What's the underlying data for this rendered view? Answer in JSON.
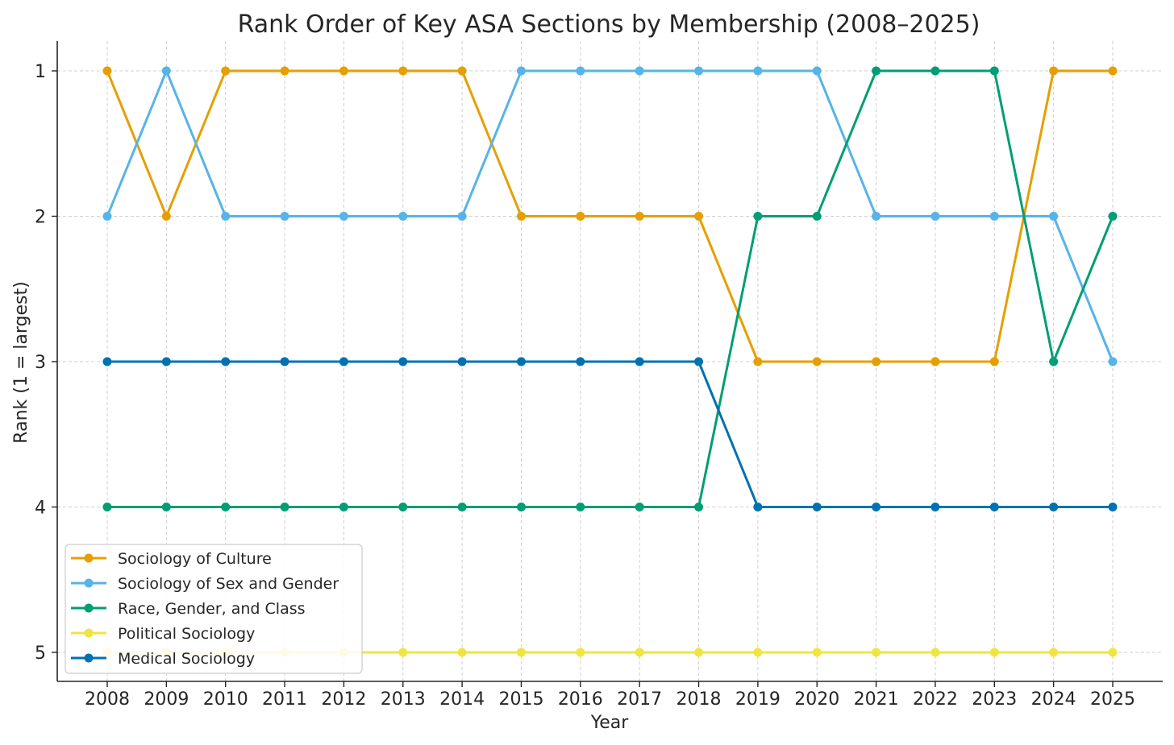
{
  "chart_data": {
    "type": "line",
    "title": "Rank Order of Key ASA Sections by Membership (2008–2025)",
    "xlabel": "Year",
    "ylabel": "Rank (1 = largest)",
    "x": [
      "2008",
      "2009",
      "2010",
      "2011",
      "2012",
      "2013",
      "2014",
      "2015",
      "2016",
      "2017",
      "2018",
      "2019",
      "2020",
      "2021",
      "2022",
      "2023",
      "2024",
      "2025"
    ],
    "yticks": [
      "1",
      "2",
      "3",
      "4",
      "5"
    ],
    "ylim": [
      5.2,
      0.8
    ],
    "y_inverted": true,
    "grid": true,
    "legend_position": "bottom-left",
    "series": [
      {
        "name": "Sociology of Culture",
        "color": "#E69F00",
        "values": [
          1,
          2,
          1,
          1,
          1,
          1,
          1,
          2,
          2,
          2,
          2,
          3,
          3,
          3,
          3,
          3,
          1,
          1
        ]
      },
      {
        "name": "Sociology of Sex and Gender",
        "color": "#56B4E9",
        "values": [
          2,
          1,
          2,
          2,
          2,
          2,
          2,
          1,
          1,
          1,
          1,
          1,
          1,
          2,
          2,
          2,
          2,
          3
        ]
      },
      {
        "name": "Race, Gender, and Class",
        "color": "#009E73",
        "values": [
          4,
          4,
          4,
          4,
          4,
          4,
          4,
          4,
          4,
          4,
          4,
          2,
          2,
          1,
          1,
          1,
          3,
          2
        ]
      },
      {
        "name": "Political Sociology",
        "color": "#F0E442",
        "values": [
          5,
          5,
          5,
          5,
          5,
          5,
          5,
          5,
          5,
          5,
          5,
          5,
          5,
          5,
          5,
          5,
          5,
          5
        ]
      },
      {
        "name": "Medical Sociology",
        "color": "#0072B2",
        "values": [
          3,
          3,
          3,
          3,
          3,
          3,
          3,
          3,
          3,
          3,
          3,
          4,
          4,
          4,
          4,
          4,
          4,
          4
        ]
      }
    ]
  }
}
